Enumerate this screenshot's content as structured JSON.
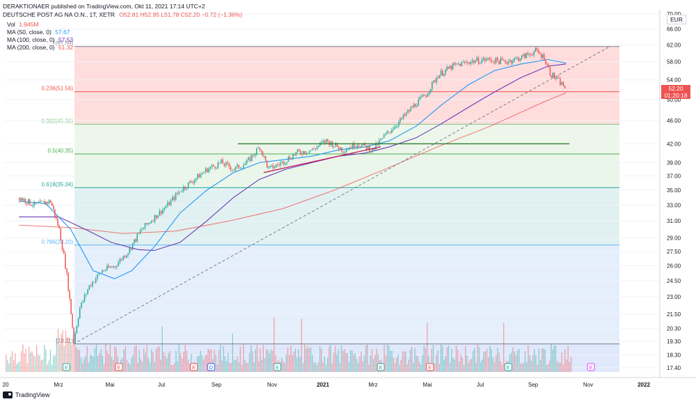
{
  "header": {
    "publisher": "DERAKTIONAER published on TradingView.com, Okt 11, 2021 17:14 UTC+2",
    "symbol": "DEUTSCHE POST AG NA O.N., 1T, XETR",
    "ohlc": "O52.81 H52.95 L51.78 C52.20 −0.72 (−1.36%)"
  },
  "legend": [
    {
      "label": "Vol",
      "value": "1.945M",
      "color": "#ef5350"
    },
    {
      "label": "MA (50, close, 0)",
      "value": "57.67",
      "color": "#2196f3"
    },
    {
      "label": "MA (100, close, 0)",
      "value": "57.53",
      "color": "#673ab7"
    },
    {
      "label": "MA (200, close, 0)",
      "value": "51.32",
      "color": "#ef5350"
    }
  ],
  "currency": "EUR",
  "last_price": {
    "price": "52.20",
    "countdown": "01:20:18"
  },
  "footer": {
    "brand": "TradingView"
  },
  "colors": {
    "up": "#26a69a",
    "down": "#ef5350",
    "ma50": "#2196f3",
    "ma100": "#673ab7",
    "ma200": "#ef5350"
  },
  "chart_data": {
    "type": "candlestick",
    "x_ticks": [
      "20",
      "Mrz",
      "Mai",
      "Jul",
      "Sep",
      "Nov",
      "2021",
      "Mrz",
      "Mai",
      "Jul",
      "Sep",
      "Nov",
      "2022"
    ],
    "y_ticks": [
      70.0,
      66.0,
      62.0,
      58.0,
      54.0,
      50.0,
      46.0,
      42.0,
      39.0,
      37.0,
      35.0,
      33.0,
      31.0,
      29.0,
      27.5,
      26.0,
      24.5,
      23.0,
      21.5,
      20.3,
      19.3,
      18.3,
      17.4
    ],
    "y_ticks_shown": [
      "70.00",
      "66.00",
      "62.00",
      "58.00",
      "54.00",
      "50.00",
      "46.00",
      "42.00",
      "39.00",
      "37.00",
      "35.00",
      "33.00",
      "31.00",
      "29.00",
      "27.50",
      "26.00",
      "24.50",
      "23.00",
      "21.50",
      "20.30",
      "19.30",
      "18.30",
      "17.40"
    ],
    "y_scale": "log",
    "fibonacci": [
      {
        "level": "0",
        "price": 19.11,
        "label": "(19.11)",
        "fill": "#e0e0e0"
      },
      {
        "level": "0.786",
        "price": 28.2,
        "label": "0.786(28.20)",
        "fill": "#e1ecfb"
      },
      {
        "level": "0.618",
        "price": 35.34,
        "label": "0.618(35.34)",
        "fill": "#dceff0"
      },
      {
        "level": "0.5",
        "price": 40.35,
        "label": "0.5(40.35)",
        "fill": "#e6f4e6"
      },
      {
        "level": "0.382",
        "price": 45.36,
        "label": "0.382(45.36)",
        "fill": "#eaf5e6"
      },
      {
        "level": "0.236",
        "price": 51.56,
        "label": "0.236(51.56)",
        "fill": "#ffd7d7"
      },
      {
        "level": "1",
        "price": 61.59,
        "label": "1(61.59)",
        "fill": "#ffd7d7"
      }
    ],
    "series_close": [
      {
        "date": "2020-01-15",
        "close": 34.0
      },
      {
        "date": "2020-02-01",
        "close": 33.0
      },
      {
        "date": "2020-02-20",
        "close": 33.5
      },
      {
        "date": "2020-03-01",
        "close": 30.0
      },
      {
        "date": "2020-03-10",
        "close": 25.0
      },
      {
        "date": "2020-03-18",
        "close": 19.3
      },
      {
        "date": "2020-03-25",
        "close": 22.0
      },
      {
        "date": "2020-04-05",
        "close": 24.0
      },
      {
        "date": "2020-04-20",
        "close": 25.5
      },
      {
        "date": "2020-05-05",
        "close": 26.0
      },
      {
        "date": "2020-05-20",
        "close": 27.5
      },
      {
        "date": "2020-06-05",
        "close": 30.0
      },
      {
        "date": "2020-06-20",
        "close": 31.5
      },
      {
        "date": "2020-07-05",
        "close": 33.0
      },
      {
        "date": "2020-07-20",
        "close": 35.0
      },
      {
        "date": "2020-08-05",
        "close": 36.5
      },
      {
        "date": "2020-08-20",
        "close": 38.0
      },
      {
        "date": "2020-09-05",
        "close": 39.0
      },
      {
        "date": "2020-09-20",
        "close": 38.0
      },
      {
        "date": "2020-10-05",
        "close": 39.0
      },
      {
        "date": "2020-10-20",
        "close": 41.5
      },
      {
        "date": "2020-10-30",
        "close": 38.0
      },
      {
        "date": "2020-11-15",
        "close": 39.0
      },
      {
        "date": "2020-12-01",
        "close": 40.5
      },
      {
        "date": "2020-12-20",
        "close": 41.0
      },
      {
        "date": "2021-01-05",
        "close": 42.5
      },
      {
        "date": "2021-01-25",
        "close": 41.0
      },
      {
        "date": "2021-02-10",
        "close": 42.0
      },
      {
        "date": "2021-02-28",
        "close": 41.0
      },
      {
        "date": "2021-03-15",
        "close": 43.5
      },
      {
        "date": "2021-04-01",
        "close": 46.0
      },
      {
        "date": "2021-04-15",
        "close": 48.5
      },
      {
        "date": "2021-05-01",
        "close": 51.0
      },
      {
        "date": "2021-05-15",
        "close": 55.0
      },
      {
        "date": "2021-06-01",
        "close": 57.0
      },
      {
        "date": "2021-06-20",
        "close": 58.0
      },
      {
        "date": "2021-07-10",
        "close": 58.5
      },
      {
        "date": "2021-08-01",
        "close": 58.0
      },
      {
        "date": "2021-08-20",
        "close": 59.0
      },
      {
        "date": "2021-09-05",
        "close": 60.5
      },
      {
        "date": "2021-09-15",
        "close": 59.0
      },
      {
        "date": "2021-09-22",
        "close": 55.5
      },
      {
        "date": "2021-09-30",
        "close": 54.0
      },
      {
        "date": "2021-10-11",
        "close": 52.2
      }
    ],
    "ma50": [
      {
        "date": "2020-01-15",
        "close": 33.5
      },
      {
        "date": "2020-02-15",
        "close": 33.2
      },
      {
        "date": "2020-03-15",
        "close": 30.0
      },
      {
        "date": "2020-04-10",
        "close": 25.5
      },
      {
        "date": "2020-05-05",
        "close": 24.7
      },
      {
        "date": "2020-05-25",
        "close": 25.5
      },
      {
        "date": "2020-06-20",
        "close": 28.0
      },
      {
        "date": "2020-07-20",
        "close": 32.0
      },
      {
        "date": "2020-08-20",
        "close": 35.0
      },
      {
        "date": "2020-09-20",
        "close": 37.5
      },
      {
        "date": "2020-10-20",
        "close": 39.0
      },
      {
        "date": "2020-11-20",
        "close": 39.5
      },
      {
        "date": "2020-12-20",
        "close": 40.0
      },
      {
        "date": "2021-01-20",
        "close": 41.0
      },
      {
        "date": "2021-02-20",
        "close": 41.5
      },
      {
        "date": "2021-03-20",
        "close": 42.5
      },
      {
        "date": "2021-04-20",
        "close": 45.0
      },
      {
        "date": "2021-05-20",
        "close": 49.0
      },
      {
        "date": "2021-06-20",
        "close": 53.0
      },
      {
        "date": "2021-07-20",
        "close": 56.0
      },
      {
        "date": "2021-08-20",
        "close": 57.5
      },
      {
        "date": "2021-09-20",
        "close": 58.5
      },
      {
        "date": "2021-10-11",
        "close": 57.7
      }
    ],
    "ma100": [
      {
        "date": "2020-01-15",
        "close": 31.5
      },
      {
        "date": "2020-03-01",
        "close": 31.5
      },
      {
        "date": "2020-04-01",
        "close": 30.0
      },
      {
        "date": "2020-05-01",
        "close": 28.5
      },
      {
        "date": "2020-06-01",
        "close": 27.7
      },
      {
        "date": "2020-06-20",
        "close": 27.6
      },
      {
        "date": "2020-07-20",
        "close": 28.5
      },
      {
        "date": "2020-08-20",
        "close": 31.0
      },
      {
        "date": "2020-09-20",
        "close": 34.0
      },
      {
        "date": "2020-10-20",
        "close": 36.5
      },
      {
        "date": "2020-11-20",
        "close": 38.0
      },
      {
        "date": "2020-12-20",
        "close": 39.0
      },
      {
        "date": "2021-01-20",
        "close": 40.0
      },
      {
        "date": "2021-02-20",
        "close": 40.5
      },
      {
        "date": "2021-03-20",
        "close": 41.5
      },
      {
        "date": "2021-04-20",
        "close": 43.0
      },
      {
        "date": "2021-05-20",
        "close": 45.5
      },
      {
        "date": "2021-06-20",
        "close": 48.5
      },
      {
        "date": "2021-07-20",
        "close": 51.5
      },
      {
        "date": "2021-08-20",
        "close": 54.5
      },
      {
        "date": "2021-09-20",
        "close": 57.0
      },
      {
        "date": "2021-10-11",
        "close": 57.5
      }
    ],
    "ma200": [
      {
        "date": "2020-01-15",
        "close": 30.5
      },
      {
        "date": "2020-03-15",
        "close": 30.2
      },
      {
        "date": "2020-05-15",
        "close": 29.5
      },
      {
        "date": "2020-07-15",
        "close": 29.8
      },
      {
        "date": "2020-09-15",
        "close": 31.0
      },
      {
        "date": "2020-11-15",
        "close": 32.5
      },
      {
        "date": "2021-01-15",
        "close": 35.0
      },
      {
        "date": "2021-03-15",
        "close": 38.0
      },
      {
        "date": "2021-05-15",
        "close": 41.5
      },
      {
        "date": "2021-07-15",
        "close": 45.0
      },
      {
        "date": "2021-09-15",
        "close": 49.5
      },
      {
        "date": "2021-10-11",
        "close": 51.3
      }
    ],
    "trendlines": [
      {
        "from": {
          "date": "2020-03-18",
          "price": 19.1
        },
        "to": {
          "date": "2021-12-01",
          "price": 61.6
        },
        "style": "dashed",
        "color": "#787b86"
      },
      {
        "from": {
          "date": "2020-09-25",
          "price": 42.0
        },
        "to": {
          "date": "2021-10-15",
          "price": 42.0
        },
        "style": "solid",
        "color": "#2e7d32"
      },
      {
        "from": {
          "date": "2020-10-25",
          "price": 37.5
        },
        "to": {
          "date": "2021-03-10",
          "price": 41.5
        },
        "style": "solid",
        "color": "#c2185b"
      }
    ],
    "earnings_markers": [
      {
        "date": "2020-03-10",
        "kind": "E",
        "color": "#26a69a"
      },
      {
        "date": "2020-05-10",
        "kind": "E",
        "color": "#ef5350"
      },
      {
        "date": "2020-08-05",
        "kind": "E",
        "color": "#ef5350"
      },
      {
        "date": "2020-08-25",
        "kind": "D",
        "color": "#2962ff"
      },
      {
        "date": "2020-11-10",
        "kind": "E",
        "color": "#26a69a"
      },
      {
        "date": "2021-03-10",
        "kind": "E",
        "color": "#26a69a"
      },
      {
        "date": "2021-05-06",
        "kind": "E",
        "color": "#ef5350"
      },
      {
        "date": "2021-08-05",
        "kind": "E",
        "color": "#26a69a"
      },
      {
        "date": "2021-11-09",
        "kind": "E",
        "color": "#e040fb"
      }
    ]
  }
}
